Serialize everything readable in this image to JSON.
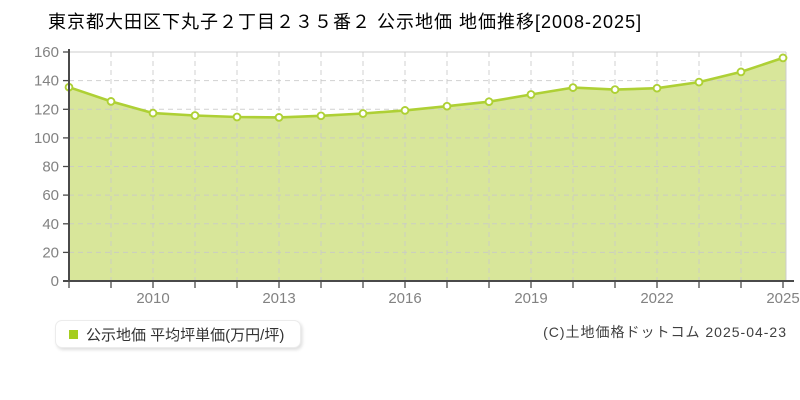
{
  "title": "東京都大田区下丸子２丁目２３５番２ 公示地価 地価推移[2008-2025]",
  "legend": {
    "label": "公示地価 平均坪単価(万円/坪)",
    "marker_color": "#a5cd1f"
  },
  "copyright": "(C)土地価格ドットコム 2025-04-23",
  "chart_data": {
    "type": "area",
    "title": "東京都大田区下丸子２丁目２３５番２ 公示地価 地価推移[2008-2025]",
    "x": [
      2008,
      2009,
      2010,
      2011,
      2012,
      2013,
      2014,
      2015,
      2016,
      2017,
      2018,
      2019,
      2020,
      2021,
      2022,
      2023,
      2024,
      2025
    ],
    "series": [
      {
        "name": "公示地価 平均坪単価(万円/坪)",
        "values": [
          135.4,
          125.5,
          117.3,
          115.6,
          114.6,
          114.3,
          115.4,
          117.0,
          119.2,
          122.1,
          125.3,
          130.3,
          135.1,
          133.7,
          134.7,
          139.0,
          146.1,
          155.9
        ]
      }
    ],
    "xlabel": "",
    "ylabel": "万円/坪",
    "ylim": [
      0,
      160
    ],
    "ytick_step": 20,
    "xtick_labels": [
      2010,
      2013,
      2016,
      2019,
      2022,
      2025
    ],
    "grid": true,
    "grid_style": "dashed",
    "marker": "circle",
    "legend_position": "bottom-left",
    "colors": {
      "line": "#aed035",
      "fill": "#d8e69a",
      "marker_fill": "#ffffff",
      "grid": "#c9c9c9",
      "border": "#cccccc",
      "axis": "#4a4a4a",
      "tick_label": "#828282"
    }
  }
}
